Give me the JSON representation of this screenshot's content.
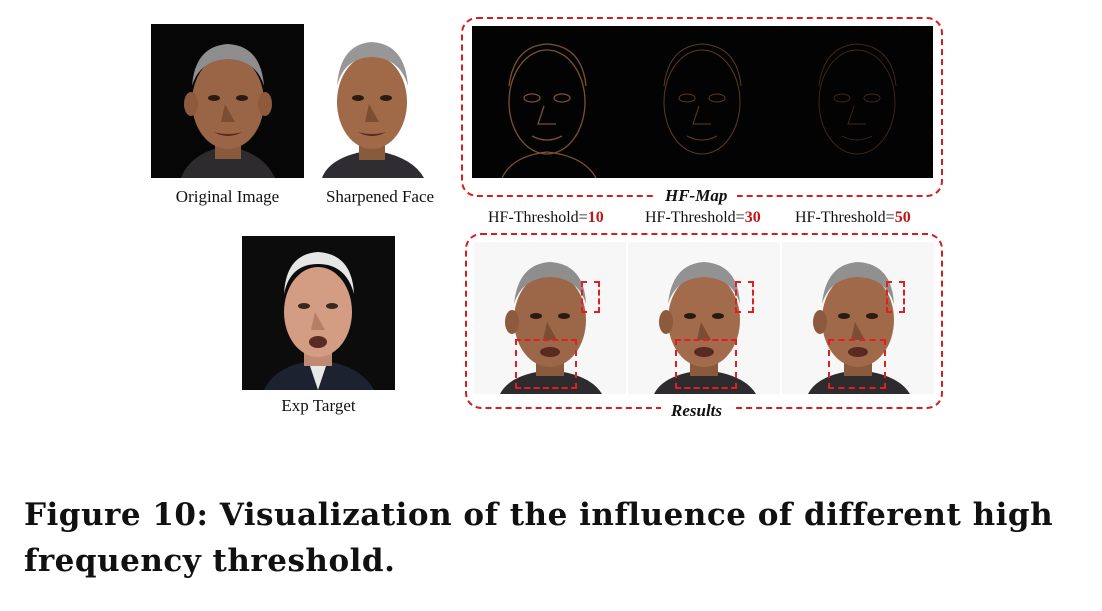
{
  "panels": {
    "original_label": "Original Image",
    "sharpened_label": "Sharpened Face",
    "exp_target_label": "Exp Target"
  },
  "hf_map": {
    "title": "HF-Map"
  },
  "thresholds": [
    {
      "prefix": "HF-Threshold=",
      "value": "10"
    },
    {
      "prefix": "HF-Threshold=",
      "value": "30"
    },
    {
      "prefix": "HF-Threshold=",
      "value": "50"
    }
  ],
  "results": {
    "title": "Results"
  },
  "caption": "Figure 10: Visualization of the influence of different high frequency threshold.",
  "colors": {
    "accent_red": "#d11f1f",
    "threshold_value": "#c0161a"
  }
}
